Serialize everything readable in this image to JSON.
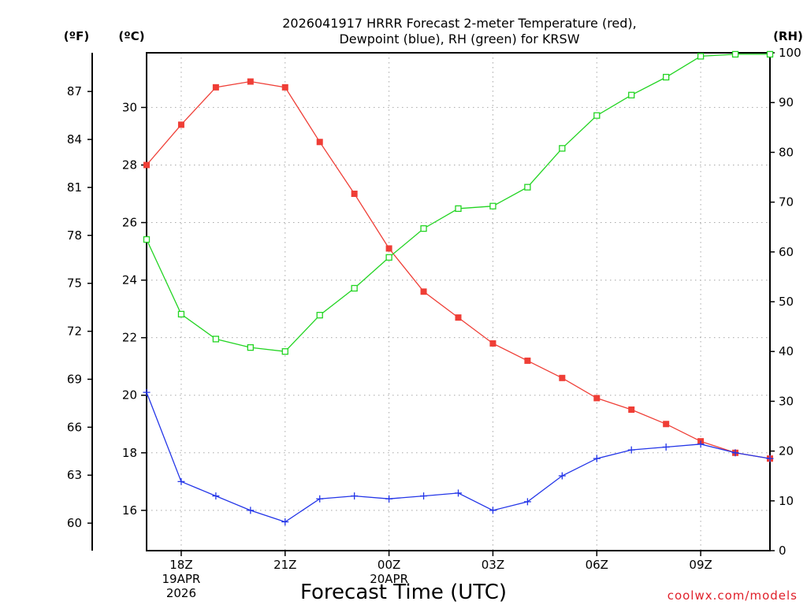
{
  "chart_data": {
    "type": "line",
    "title_line1": "2026041917 HRRR Forecast 2-meter Temperature (red),",
    "title_line2": "Dewpoint (blue), RH (green) for KRSW",
    "xlabel": "Forecast Time (UTC)",
    "credit": "coolwx.com/models",
    "units": {
      "fahrenheit": "(ºF)",
      "celsius": "(ºC)",
      "rh": "(RH)"
    },
    "x_hours": [
      17,
      18,
      19,
      20,
      21,
      22,
      23,
      24,
      25,
      26,
      27,
      28,
      29,
      30,
      31,
      32,
      33,
      34,
      35
    ],
    "xlim": [
      17,
      35
    ],
    "x_ticks": [
      {
        "hour": 18,
        "lines": [
          "18Z",
          "19APR",
          "2026"
        ]
      },
      {
        "hour": 21,
        "lines": [
          "21Z"
        ]
      },
      {
        "hour": 24,
        "lines": [
          "00Z",
          "20APR"
        ]
      },
      {
        "hour": 27,
        "lines": [
          "03Z"
        ]
      },
      {
        "hour": 30,
        "lines": [
          "06Z"
        ]
      },
      {
        "hour": 33,
        "lines": [
          "09Z"
        ]
      }
    ],
    "celsius_axis": {
      "ylim": [
        14.6,
        31.9
      ],
      "ticks": [
        "16",
        "18",
        "20",
        "22",
        "24",
        "26",
        "28",
        "30"
      ]
    },
    "fahrenheit_ticks": [
      "60",
      "63",
      "66",
      "69",
      "72",
      "75",
      "78",
      "81",
      "84",
      "87"
    ],
    "rh_axis": {
      "ylim": [
        0,
        100
      ],
      "ticks": [
        "0",
        "10",
        "20",
        "30",
        "40",
        "50",
        "60",
        "70",
        "80",
        "90",
        "100"
      ]
    },
    "series": [
      {
        "name": "Temperature",
        "color": "#ef3e36",
        "marker": "filled-square",
        "axis": "celsius",
        "values": [
          28.0,
          29.4,
          30.7,
          30.9,
          30.7,
          28.8,
          27.0,
          25.1,
          23.6,
          22.7,
          21.8,
          21.2,
          20.6,
          19.9,
          19.5,
          19.0,
          18.4,
          18.0,
          17.8
        ]
      },
      {
        "name": "Dewpoint",
        "color": "#2335e8",
        "marker": "plus",
        "axis": "celsius",
        "values": [
          20.1,
          17.0,
          16.5,
          16.0,
          15.6,
          16.4,
          16.5,
          16.4,
          16.5,
          16.6,
          16.0,
          16.3,
          17.2,
          17.8,
          18.1,
          18.2,
          18.3,
          18.0,
          17.8
        ]
      },
      {
        "name": "RH",
        "color": "#22d422",
        "marker": "open-square",
        "axis": "rh",
        "values": [
          62.5,
          47.5,
          42.5,
          40.8,
          40.0,
          47.3,
          52.7,
          58.9,
          64.7,
          68.7,
          69.2,
          73.0,
          80.8,
          87.4,
          91.5,
          95.1,
          99.3,
          99.7,
          99.7
        ]
      }
    ]
  }
}
